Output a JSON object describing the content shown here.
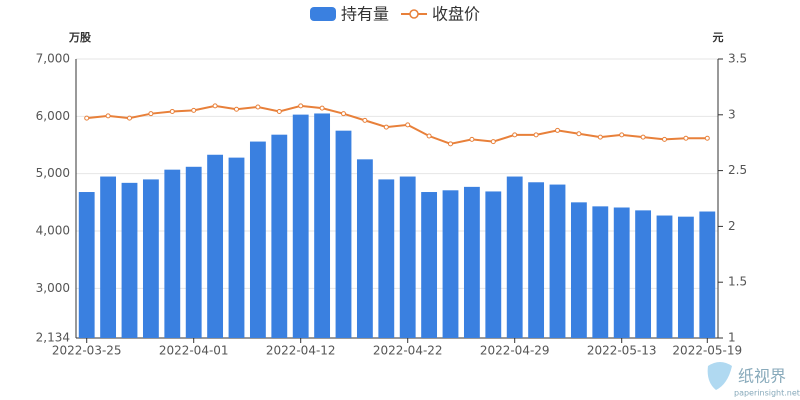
{
  "chart_data": {
    "type": "bar",
    "legend": "top",
    "grid": true,
    "y_axis_label": "万股",
    "y2_axis_label": "元",
    "categories": [
      "2022-03-25",
      null,
      null,
      null,
      null,
      "2022-04-01",
      null,
      null,
      null,
      null,
      "2022-04-12",
      null,
      null,
      null,
      null,
      "2022-04-22",
      null,
      null,
      null,
      null,
      "2022-04-29",
      null,
      null,
      null,
      null,
      "2022-05-13",
      null,
      null,
      null,
      "2022-05-19"
    ],
    "series": [
      {
        "name": "持有量",
        "type": "bar",
        "color": "#3a80e0",
        "values": [
          4680,
          4950,
          4840,
          4900,
          5070,
          5120,
          5330,
          5280,
          5560,
          5680,
          6030,
          6050,
          5750,
          5250,
          4900,
          4950,
          4680,
          4710,
          4770,
          4690,
          4950,
          4850,
          4810,
          4500,
          4430,
          4410,
          4360,
          4270,
          4250,
          4340
        ]
      },
      {
        "name": "收盘价",
        "type": "line",
        "axis": "y2",
        "color": "#e8803a",
        "values": [
          2.97,
          2.99,
          2.97,
          3.01,
          3.03,
          3.04,
          3.08,
          3.05,
          3.07,
          3.03,
          3.08,
          3.06,
          3.01,
          2.95,
          2.89,
          2.91,
          2.81,
          2.74,
          2.78,
          2.76,
          2.82,
          2.82,
          2.86,
          2.83,
          2.8,
          2.82,
          2.8,
          2.78,
          2.79,
          2.79
        ]
      }
    ],
    "ylim": [
      2134,
      7000
    ],
    "yticks": [
      {
        "value": 2134,
        "label": "2,134"
      },
      {
        "value": 3000,
        "label": "3,000"
      },
      {
        "value": 4000,
        "label": "4,000"
      },
      {
        "value": 5000,
        "label": "5,000"
      },
      {
        "value": 6000,
        "label": "6,000"
      },
      {
        "value": 7000,
        "label": "7,000"
      }
    ],
    "y2lim": [
      1,
      3.5
    ],
    "y2ticks": [
      1,
      1.5,
      2,
      2.5,
      3,
      3.5
    ],
    "watermark": {
      "title": "纸视界",
      "url": "paperinsight.net"
    }
  }
}
